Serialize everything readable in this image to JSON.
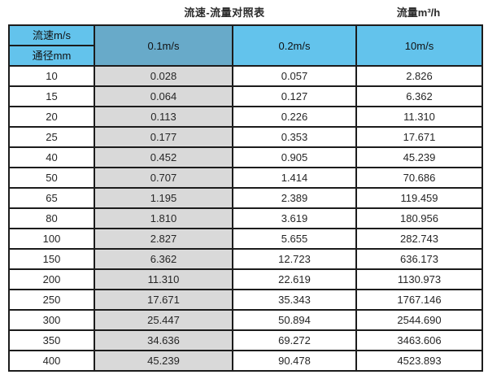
{
  "titles": {
    "main": "流速-流量对照表",
    "unit": "流量m³/h"
  },
  "colors": {
    "header_light": "#63c3ec",
    "header_dark": "#68aac9",
    "column_gray": "#d9d9d9",
    "border": "#1c1c1c",
    "text": "#262626"
  },
  "chart_data": {
    "type": "table",
    "title": "流速-流量对照表",
    "unit_label": "流量m³/h",
    "corner_top": "流速m/s",
    "corner_bottom": "通径mm",
    "columns": [
      "0.1m/s",
      "0.2m/s",
      "10m/s"
    ],
    "rows": [
      {
        "diameter": "10",
        "values": [
          "0.028",
          "0.057",
          "2.826"
        ]
      },
      {
        "diameter": "15",
        "values": [
          "0.064",
          "0.127",
          "6.362"
        ]
      },
      {
        "diameter": "20",
        "values": [
          "0.113",
          "0.226",
          "11.310"
        ]
      },
      {
        "diameter": "25",
        "values": [
          "0.177",
          "0.353",
          "17.671"
        ]
      },
      {
        "diameter": "40",
        "values": [
          "0.452",
          "0.905",
          "45.239"
        ]
      },
      {
        "diameter": "50",
        "values": [
          "0.707",
          "1.414",
          "70.686"
        ]
      },
      {
        "diameter": "65",
        "values": [
          "1.195",
          "2.389",
          "119.459"
        ]
      },
      {
        "diameter": "80",
        "values": [
          "1.810",
          "3.619",
          "180.956"
        ]
      },
      {
        "diameter": "100",
        "values": [
          "2.827",
          "5.655",
          "282.743"
        ]
      },
      {
        "diameter": "150",
        "values": [
          "6.362",
          "12.723",
          "636.173"
        ]
      },
      {
        "diameter": "200",
        "values": [
          "11.310",
          "22.619",
          "1130.973"
        ]
      },
      {
        "diameter": "250",
        "values": [
          "17.671",
          "35.343",
          "1767.146"
        ]
      },
      {
        "diameter": "300",
        "values": [
          "25.447",
          "50.894",
          "2544.690"
        ]
      },
      {
        "diameter": "350",
        "values": [
          "34.636",
          "69.272",
          "3463.606"
        ]
      },
      {
        "diameter": "400",
        "values": [
          "45.239",
          "90.478",
          "4523.893"
        ]
      }
    ]
  }
}
